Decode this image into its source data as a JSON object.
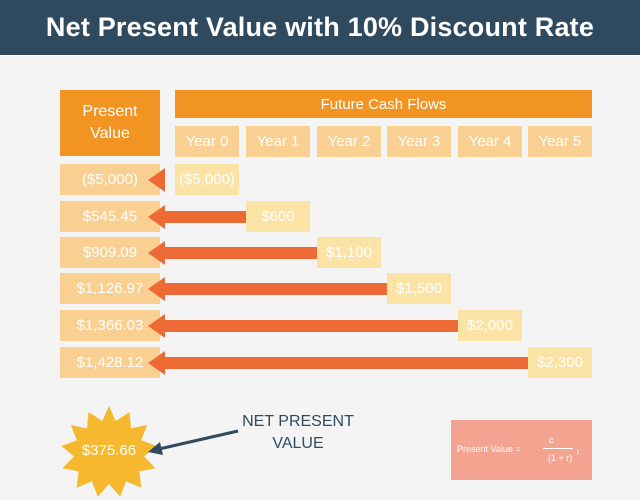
{
  "title": "Net Present Value with 10% Discount Rate",
  "pv_header_line1": "Present",
  "pv_header_line2": "Value",
  "fcf_header": "Future Cash Flows",
  "years": [
    "Year 0",
    "Year 1",
    "Year 2",
    "Year 3",
    "Year 4",
    "Year 5"
  ],
  "rows": [
    {
      "present_value": "($5,000)",
      "cash_flow": "($5,000)",
      "year_index": 0
    },
    {
      "present_value": "$545.45",
      "cash_flow": "$600",
      "year_index": 1
    },
    {
      "present_value": "$909.09",
      "cash_flow": "$1,100",
      "year_index": 2
    },
    {
      "present_value": "$1,126.97",
      "cash_flow": "$1,500",
      "year_index": 3
    },
    {
      "present_value": "$1,366.03",
      "cash_flow": "$2,000",
      "year_index": 4
    },
    {
      "present_value": "$1,428.12",
      "cash_flow": "$2,300",
      "year_index": 5
    }
  ],
  "npv_value": "$375.66",
  "npv_label_line1": "NET PRESENT",
  "npv_label_line2": "VALUE",
  "formula": {
    "lhs": "Present Value =",
    "numerator": "c",
    "denominator": "(1 + r)",
    "exponent": "t"
  },
  "colors": {
    "title_bg": "#2f4a5e",
    "header_orange": "#f29421",
    "pv_cell": "#f9cf92",
    "cf_cell": "#fbe3a6",
    "arrow": "#ee6a35",
    "star": "#f5b82e",
    "formula_bg": "#f4a391"
  }
}
